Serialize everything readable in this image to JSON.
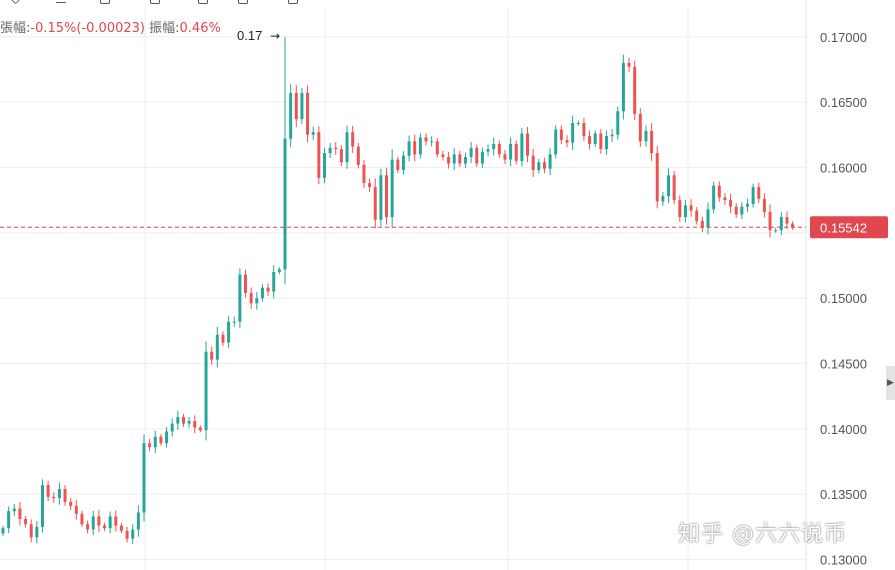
{
  "header": {
    "change_label": "張幅:",
    "change_value": "-0.15%(-0.00023)",
    "amplitude_label": "振幅:",
    "amplitude_value": "0.46%"
  },
  "watermark": "知乎 @六六说币",
  "colors": {
    "up": "#26a69a",
    "down": "#ef5350",
    "price_line": "#e0474f",
    "price_badge": "#e0474f",
    "grid": "#eeeeee",
    "axis_text": "#555555"
  },
  "icons": [
    "chevron-down-icon",
    "interval-icon",
    "indicator-icon",
    "chart-type-icon",
    "template-icon",
    "compare-icon"
  ],
  "chart_data": {
    "type": "candlestick",
    "y_ticks": [
      "0.17000",
      "0.16500",
      "0.16000",
      "0.15500",
      "0.15000",
      "0.14500",
      "0.14000",
      "0.13500",
      "0.13000"
    ],
    "ylim": [
      0.1292,
      0.1722
    ],
    "current_price_label": "0.15542",
    "current_price": 0.15542,
    "high_annotation": {
      "text": "0.17",
      "index": 50,
      "value": 0.17
    },
    "closes": [
      0.1324,
      0.1337,
      0.1339,
      0.1331,
      0.1327,
      0.1317,
      0.1325,
      0.1357,
      0.1348,
      0.1347,
      0.1354,
      0.1344,
      0.1341,
      0.1335,
      0.1327,
      0.1323,
      0.1333,
      0.1326,
      0.1324,
      0.1333,
      0.1326,
      0.1322,
      0.1316,
      0.1323,
      0.1336,
      0.1389,
      0.1386,
      0.1394,
      0.1389,
      0.1398,
      0.1404,
      0.1409,
      0.1404,
      0.1406,
      0.1401,
      0.1399,
      0.1459,
      0.1453,
      0.1472,
      0.1466,
      0.1482,
      0.1482,
      0.1518,
      0.1504,
      0.1496,
      0.15,
      0.1508,
      0.1505,
      0.152,
      0.1522,
      0.1622,
      0.1657,
      0.1637,
      0.1657,
      0.1625,
      0.1627,
      0.1592,
      0.1611,
      0.1615,
      0.1614,
      0.1604,
      0.1627,
      0.1616,
      0.1602,
      0.1588,
      0.1585,
      0.156,
      0.1594,
      0.1562,
      0.1606,
      0.1598,
      0.1609,
      0.162,
      0.161,
      0.1623,
      0.162,
      0.162,
      0.161,
      0.1608,
      0.1603,
      0.161,
      0.1603,
      0.1608,
      0.1615,
      0.1603,
      0.1612,
      0.1614,
      0.1618,
      0.161,
      0.1606,
      0.1618,
      0.1605,
      0.1626,
      0.1609,
      0.1598,
      0.1604,
      0.1599,
      0.161,
      0.1629,
      0.1621,
      0.1619,
      0.1634,
      0.1634,
      0.1624,
      0.1618,
      0.1626,
      0.1614,
      0.1624,
      0.1625,
      0.1643,
      0.168,
      0.1677,
      0.1641,
      0.162,
      0.1628,
      0.1611,
      0.1574,
      0.1578,
      0.1594,
      0.1575,
      0.1562,
      0.1571,
      0.1567,
      0.1559,
      0.1554,
      0.1568,
      0.1586,
      0.1577,
      0.1575,
      0.157,
      0.1564,
      0.157,
      0.1572,
      0.1585,
      0.1576,
      0.1566,
      0.1552,
      0.1552,
      0.1562,
      0.1557,
      0.1554
    ]
  }
}
